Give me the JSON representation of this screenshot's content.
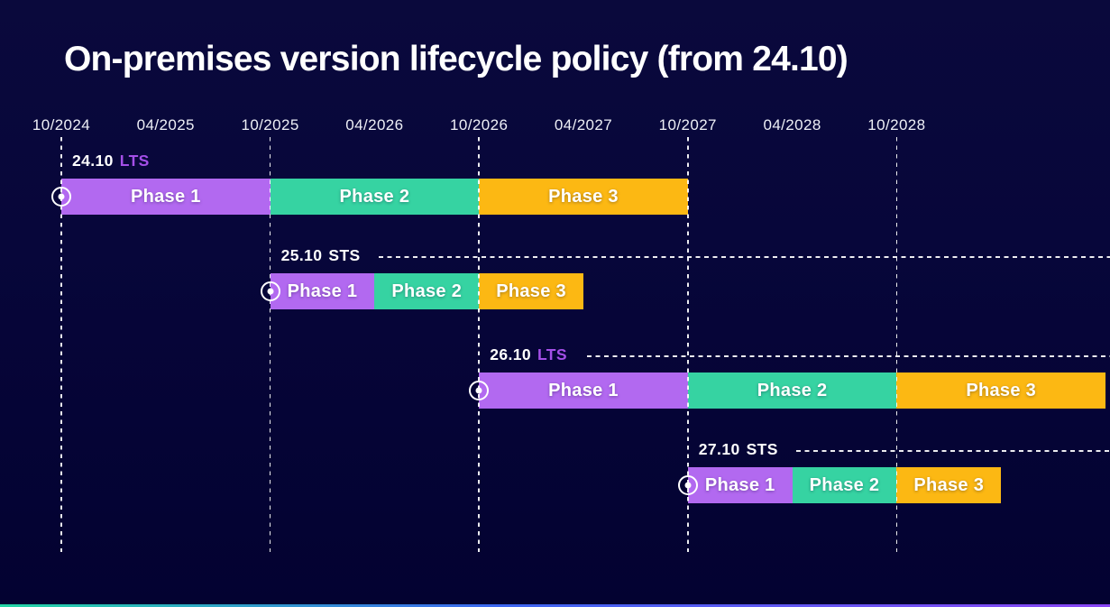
{
  "icons": {
    "release_marker": "circled-dot"
  },
  "chart_data": {
    "type": "gantt",
    "title": "On-premises version lifecycle policy (from 24.10)",
    "x_axis": {
      "tick_labels": [
        "10/2024",
        "04/2025",
        "10/2025",
        "04/2026",
        "10/2026",
        "04/2027",
        "10/2027",
        "04/2028",
        "10/2028"
      ],
      "gridline_ticks": [
        "10/2024",
        "10/2025",
        "10/2026",
        "10/2027",
        "10/2028"
      ],
      "visible_range": [
        "10/2024",
        "10/2029"
      ],
      "grid": "vertical-dashed-on-october-ticks"
    },
    "colors": {
      "phase1": "#b269f0",
      "phase2": "#36d3a2",
      "phase3": "#fcb813",
      "lts_accent": "#a44fe8",
      "sts_text": "#ffffff",
      "background": "#07063a",
      "text": "#ffffff"
    },
    "rows": [
      {
        "version": "24.10",
        "channel": "LTS",
        "release": "10/2024",
        "leader_line": false,
        "phases": [
          {
            "label": "Phase 1",
            "start": "10/2024",
            "end": "10/2025"
          },
          {
            "label": "Phase 2",
            "start": "10/2025",
            "end": "10/2026"
          },
          {
            "label": "Phase 3",
            "start": "10/2026",
            "end": "10/2027"
          }
        ]
      },
      {
        "version": "25.10",
        "channel": "STS",
        "release": "10/2025",
        "leader_line": true,
        "phases": [
          {
            "label": "Phase 1",
            "start": "10/2025",
            "end": "04/2026"
          },
          {
            "label": "Phase 2",
            "start": "04/2026",
            "end": "10/2026"
          },
          {
            "label": "Phase 3",
            "start": "10/2026",
            "end": "04/2027"
          }
        ]
      },
      {
        "version": "26.10",
        "channel": "LTS",
        "release": "10/2026",
        "leader_line": true,
        "phases": [
          {
            "label": "Phase 1",
            "start": "10/2026",
            "end": "10/2027"
          },
          {
            "label": "Phase 2",
            "start": "10/2027",
            "end": "10/2028"
          },
          {
            "label": "Phase 3",
            "start": "10/2028",
            "end": "10/2029"
          }
        ]
      },
      {
        "version": "27.10",
        "channel": "STS",
        "release": "10/2027",
        "leader_line": true,
        "phases": [
          {
            "label": "Phase 1",
            "start": "10/2027",
            "end": "04/2028"
          },
          {
            "label": "Phase 2",
            "start": "04/2028",
            "end": "10/2028"
          },
          {
            "label": "Phase 3",
            "start": "10/2028",
            "end": "04/2029"
          }
        ]
      }
    ]
  }
}
